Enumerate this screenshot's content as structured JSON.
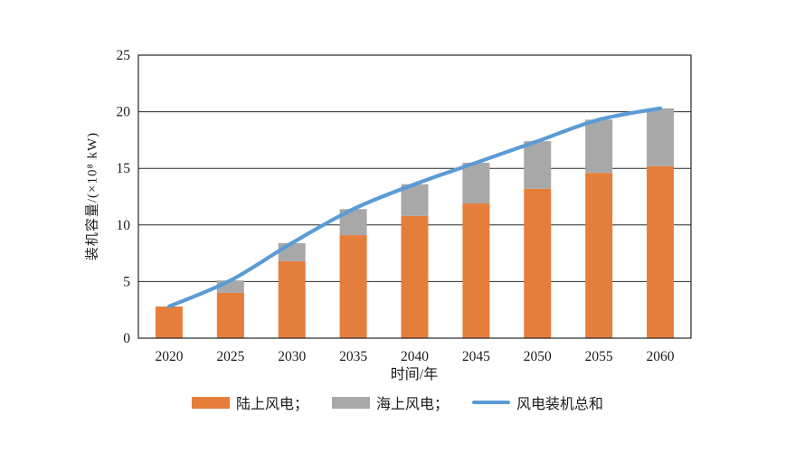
{
  "chart_data": {
    "type": "bar",
    "subtype": "stacked-bars-with-total-line",
    "categories": [
      "2020",
      "2025",
      "2030",
      "2035",
      "2040",
      "2045",
      "2050",
      "2055",
      "2060"
    ],
    "series": [
      {
        "name": "陆上风电",
        "kind": "bar",
        "color": "#E67E3B",
        "values": [
          2.8,
          4.0,
          6.8,
          9.1,
          10.8,
          11.9,
          13.2,
          14.6,
          15.2
        ]
      },
      {
        "name": "海上风电",
        "kind": "bar",
        "color": "#A8A8A8",
        "values": [
          0,
          1.1,
          1.6,
          2.3,
          2.8,
          3.6,
          4.2,
          4.7,
          5.1
        ]
      },
      {
        "name": "风电装机总和",
        "kind": "line",
        "color": "#5B9BD5",
        "values": [
          2.8,
          5.1,
          8.4,
          11.4,
          13.6,
          15.5,
          17.4,
          19.3,
          20.3
        ]
      }
    ],
    "title": "",
    "xlabel": "时间/年",
    "ylabel": "装机容量/(×10⁸ kW)",
    "ylim": [
      0,
      25
    ],
    "yticks": [
      0,
      5,
      10,
      15,
      20,
      25
    ],
    "grid": "horizontal",
    "legend_position": "bottom"
  },
  "legend": {
    "items": [
      {
        "label": "陆上风电；",
        "swatch": "bar",
        "color": "#E67E3B"
      },
      {
        "label": "海上风电；",
        "swatch": "bar",
        "color": "#A8A8A8"
      },
      {
        "label": "风电装机总和",
        "swatch": "line",
        "color": "#5B9BD5"
      }
    ]
  },
  "colors": {
    "onshore": "#E67E3B",
    "offshore": "#A8A8A8",
    "total_line": "#5B9BD5",
    "axis": "#262626",
    "background": "#ffffff"
  }
}
